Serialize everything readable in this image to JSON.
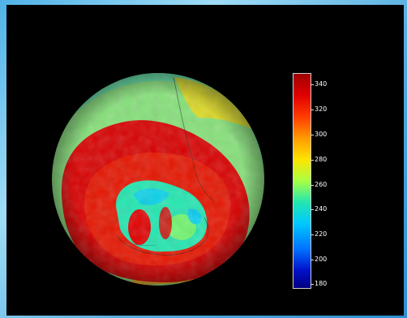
{
  "figure": {
    "colorbar": {
      "ticks": [
        "340",
        "320",
        "300",
        "280",
        "260",
        "240",
        "220",
        "200",
        "180"
      ],
      "colors": [
        "#a00000",
        "#e00000",
        "#ff3b00",
        "#ff9a00",
        "#ffe400",
        "#a8ff44",
        "#22e6b0",
        "#00c8ff",
        "#0070ff",
        "#0010c8",
        "#000080"
      ]
    },
    "globe_colors": {
      "rim": "#a8ff44",
      "ring": "#d10000",
      "hole": "#22e6b0"
    }
  }
}
